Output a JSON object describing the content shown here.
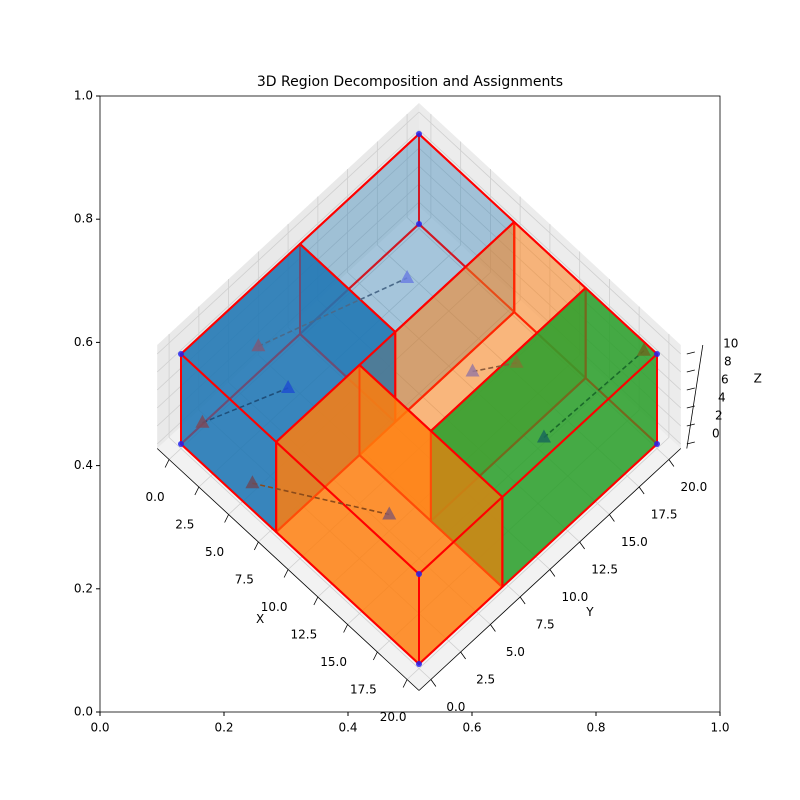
{
  "chart_data": {
    "type": "3d-boxes",
    "title": "3D Region Decomposition and Assignments",
    "frame": {
      "xlim": [
        0,
        1
      ],
      "ylim": [
        0,
        1
      ],
      "xticks": [
        {
          "value": 0,
          "label": "0.0"
        },
        0.2,
        0.4,
        0.6,
        0.8,
        {
          "value": 1,
          "label": "1.0"
        }
      ],
      "yticks": [
        {
          "value": 0,
          "label": "0.0"
        },
        0.2,
        0.4,
        0.6,
        0.8,
        {
          "value": 1,
          "label": "1.0"
        }
      ]
    },
    "xlabel": "X",
    "ylabel": "Y",
    "zlabel": "Z",
    "xlim": [
      -1,
      21
    ],
    "ylim": [
      -1,
      21
    ],
    "zlim": [
      -0.5,
      11
    ],
    "xticks": [
      {
        "value": 0,
        "label": "0.0"
      },
      2.5,
      {
        "value": 5,
        "label": "5.0"
      },
      7.5,
      {
        "value": 10,
        "label": "10.0"
      },
      12.5,
      {
        "value": 15,
        "label": "15.0"
      },
      17.5,
      {
        "value": 20,
        "label": "20.0"
      }
    ],
    "yticks": [
      {
        "value": 0,
        "label": "0.0"
      },
      2.5,
      {
        "value": 5,
        "label": "5.0"
      },
      7.5,
      {
        "value": 10,
        "label": "10.0"
      },
      12.5,
      {
        "value": 15,
        "label": "15.0"
      },
      17.5,
      {
        "value": 20,
        "label": "20.0"
      }
    ],
    "zticks": [
      0,
      2,
      4,
      6,
      8,
      10
    ],
    "grid": true,
    "edge_color": "#ff0000",
    "regions": [
      {
        "x": [
          0,
          8
        ],
        "y": [
          0,
          10
        ],
        "z": [
          0,
          10
        ],
        "color": "#1f77b4",
        "alpha": 0.65
      },
      {
        "x": [
          0,
          8
        ],
        "y": [
          10,
          20
        ],
        "z": [
          0,
          10
        ],
        "color": "#1f77b4",
        "alpha": 0.2
      },
      {
        "x": [
          8,
          20
        ],
        "y": [
          0,
          7
        ],
        "z": [
          0,
          10
        ],
        "color": "#ff7f0e",
        "alpha": 0.6
      },
      {
        "x": [
          8,
          14
        ],
        "y": [
          7,
          20
        ],
        "z": [
          0,
          10
        ],
        "color": "#ff7f0e",
        "alpha": 0.3
      },
      {
        "x": [
          14,
          20
        ],
        "y": [
          7,
          20
        ],
        "z": [
          0,
          10
        ],
        "color": "#2ca02c",
        "alpha": 0.65
      }
    ],
    "corner_color": "#2222ee",
    "corners": [
      [
        0,
        0,
        0
      ],
      [
        0,
        0,
        10
      ],
      [
        0,
        20,
        0
      ],
      [
        0,
        20,
        10
      ],
      [
        20,
        20,
        0
      ],
      [
        20,
        20,
        10
      ],
      [
        20,
        0,
        0
      ],
      [
        20,
        0,
        10
      ]
    ],
    "assignments": [
      {
        "source": [
          2.9,
          3.6,
          10
        ],
        "source_color": "#7a5a7a",
        "target": [
          4,
          15,
          5
        ],
        "target_color": "#6b7fe0",
        "line_color": "#4a6a8a"
      },
      {
        "source": [
          0.75,
          1.05,
          2
        ],
        "source_color": "#7a4a5a",
        "target": [
          4,
          5,
          5
        ],
        "target_color": "#1f4fd0",
        "line_color": "#1f4f7a"
      },
      {
        "source": [
          5.6,
          0.4,
          2
        ],
        "source_color": "#6a4a5a",
        "target": [
          14,
          3.5,
          5
        ],
        "target_color": "#8a5a6a",
        "line_color": "#8a4a1a"
      },
      {
        "source": [
          11,
          13.5,
          5
        ],
        "source_color": "#9a7aa0",
        "target": [
          14.5,
          13.7,
          10
        ],
        "target_color": "#7a7a30",
        "line_color": "#8a5a3a"
      },
      {
        "source": [
          17,
          13.5,
          5
        ],
        "source_color": "#1a6a5a",
        "target": [
          19.3,
          19.6,
          10
        ],
        "target_color": "#6a6a20",
        "line_color": "#1a6a2a"
      }
    ]
  }
}
